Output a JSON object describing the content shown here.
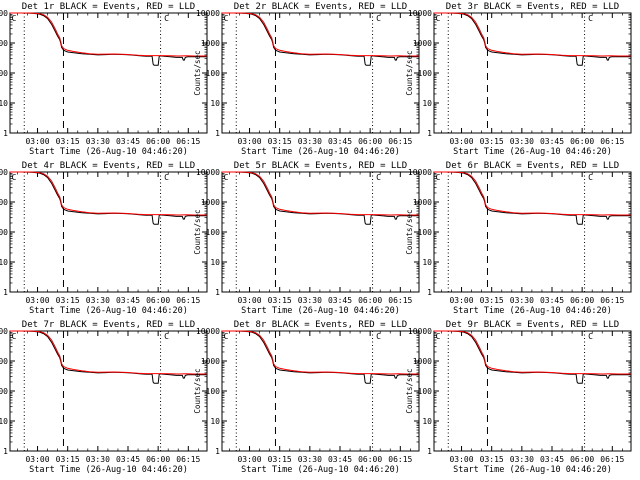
{
  "chart_data": {
    "type": "line",
    "layout": "3x3 grid",
    "y_scale": "log",
    "ylim": [
      1,
      10000
    ],
    "y_ticks": [
      1,
      10,
      100,
      1000,
      10000
    ],
    "y_tick_labels": [
      "1",
      "10",
      "100",
      "1000",
      "10000"
    ],
    "ylabel": "Counts/sec",
    "x_unit": "minutes since 03:00",
    "xlim": [
      -13.7,
      84.3
    ],
    "x_ticks": [
      0,
      15,
      30,
      45,
      60,
      75
    ],
    "x_tick_labels": [
      "03:00",
      "03:15",
      "03:30",
      "03:45",
      "06:00",
      "06:15"
    ],
    "xlabel": "Start Time (26-Aug-10 04:46:20)",
    "legend": "BLACK = Events, RED = LLD",
    "marker_label": "C",
    "dotted_lines_x": [
      -6.6,
      61.2
    ],
    "dashed_line_x": 12.9,
    "series_colors": {
      "events": "#000000",
      "lld": "#ff0000"
    },
    "panels": [
      {
        "title": "Det 1r BLACK = Events, RED = LLD"
      },
      {
        "title": "Det 2r BLACK = Events, RED = LLD"
      },
      {
        "title": "Det 3r BLACK = Events, RED = LLD"
      },
      {
        "title": "Det 4r BLACK = Events, RED = LLD"
      },
      {
        "title": "Det 5r BLACK = Events, RED = LLD"
      },
      {
        "title": "Det 6r BLACK = Events, RED = LLD"
      },
      {
        "title": "Det 7r BLACK = Events, RED = LLD"
      },
      {
        "title": "Det 8r BLACK = Events, RED = LLD"
      },
      {
        "title": "Det 9r BLACK = Events, RED = LLD"
      }
    ],
    "series": [
      {
        "name": "Events",
        "x": [
          -13.7,
          -11,
          -8,
          -5,
          -2,
          1,
          3,
          5,
          7,
          9,
          10,
          11,
          11.5,
          12,
          13,
          15,
          18,
          22,
          26,
          30,
          34,
          38,
          42,
          46,
          50,
          54,
          56,
          57,
          57.5,
          58,
          60,
          60.5,
          61,
          61.5,
          63,
          66,
          69,
          72,
          72.5,
          73,
          73.5,
          75,
          78,
          81,
          84.3
        ],
        "values": [
          10000,
          10000,
          10000,
          9900,
          9700,
          9200,
          8200,
          6500,
          4200,
          2300,
          1700,
          1300,
          1000,
          700,
          570,
          500,
          470,
          440,
          420,
          400,
          410,
          420,
          415,
          400,
          380,
          360,
          360,
          360,
          200,
          180,
          180,
          360,
          370,
          370,
          360,
          350,
          330,
          330,
          270,
          270,
          330,
          350,
          350,
          350,
          350
        ]
      },
      {
        "name": "LLD",
        "x": [
          -13.7,
          -11,
          -8,
          -5,
          -2,
          1,
          3,
          5,
          7,
          9,
          10,
          11,
          11.5,
          12,
          13,
          15,
          18,
          22,
          26,
          30,
          34,
          38,
          42,
          46,
          50,
          54,
          58,
          62,
          66,
          70,
          74,
          78,
          84.3
        ],
        "values": [
          10000,
          10000,
          10000,
          10000,
          9900,
          9500,
          8800,
          7200,
          5000,
          2800,
          2000,
          1500,
          1150,
          800,
          650,
          570,
          520,
          470,
          440,
          420,
          425,
          430,
          420,
          410,
          390,
          380,
          380,
          380,
          375,
          370,
          375,
          370,
          370
        ]
      }
    ]
  }
}
